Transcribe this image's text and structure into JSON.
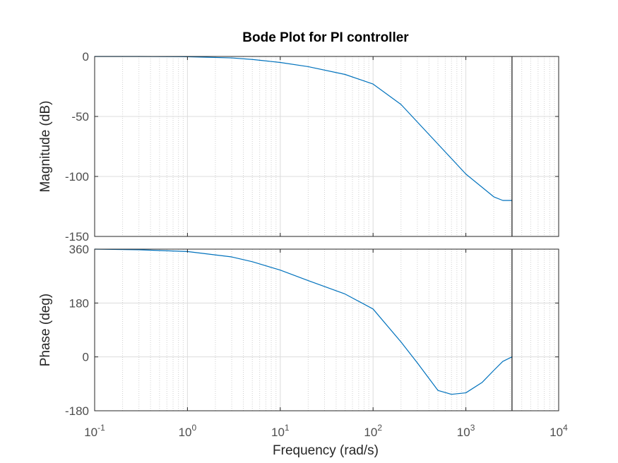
{
  "chart_data": {
    "type": "line",
    "title": "Bode Plot for PI controller",
    "xlabel": "Frequency  (rad/s)",
    "xscale": "log",
    "xlim": [
      0.1,
      10000
    ],
    "x_ticks": [
      {
        "base": "10",
        "exp": "-1"
      },
      {
        "base": "10",
        "exp": "0"
      },
      {
        "base": "10",
        "exp": "1"
      },
      {
        "base": "10",
        "exp": "2"
      },
      {
        "base": "10",
        "exp": "3"
      },
      {
        "base": "10",
        "exp": "4"
      }
    ],
    "grid": true,
    "nyquist_frequency": 3141.6,
    "line_color": "#0072bd",
    "marker_line_color": "#000000",
    "panels": [
      {
        "ylabel": "Magnitude (dB)",
        "ylim": [
          -150,
          0
        ],
        "yticks": [
          0,
          -50,
          -100,
          -150
        ],
        "series": [
          {
            "x": [
              0.1,
              0.3,
              1,
              3,
              5,
              10,
              20,
              50,
              100,
              200,
              500,
              1000,
              2000,
              2500,
              3000,
              3141.6
            ],
            "values": [
              0,
              0,
              -0.2,
              -1.2,
              -2.5,
              -5,
              -8.5,
              -15,
              -23,
              -40,
              -73,
              -98,
              -117,
              -120,
              -120,
              -120
            ]
          }
        ]
      },
      {
        "ylabel": "Phase (deg)",
        "ylim": [
          -180,
          360
        ],
        "yticks": [
          360,
          180,
          0,
          -180
        ],
        "series": [
          {
            "x": [
              0.1,
              0.3,
              1,
              3,
              5,
              10,
              20,
              50,
              100,
              200,
              300,
              500,
              700,
              1000,
              1500,
              2000,
              2500,
              3000,
              3141.6
            ],
            "values": [
              360,
              358,
              352,
              334,
              318,
              290,
              255,
              210,
              160,
              50,
              -20,
              -112,
              -125,
              -120,
              -85,
              -45,
              -15,
              -3,
              0
            ]
          }
        ]
      }
    ]
  }
}
